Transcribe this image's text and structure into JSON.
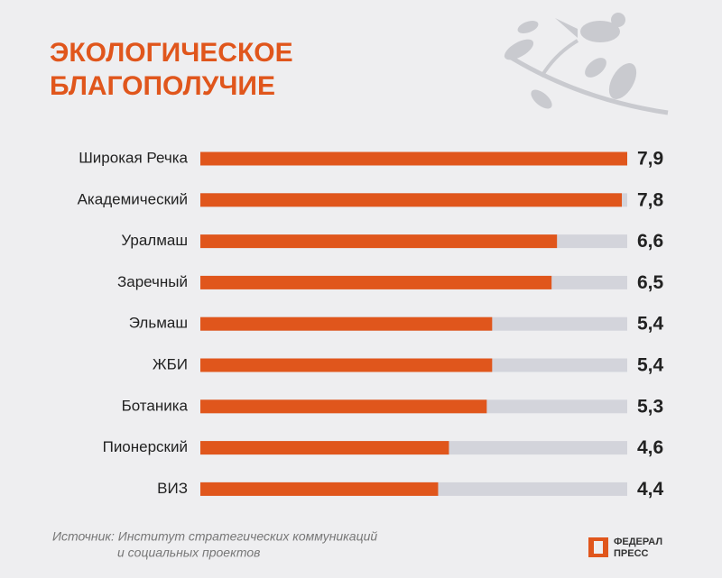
{
  "chart_data": {
    "type": "bar",
    "orientation": "horizontal",
    "title": [
      "ЭКОЛОГИЧЕСКОЕ",
      "БЛАГОПОЛУЧИЕ"
    ],
    "categories": [
      "Широкая Речка",
      "Академический",
      "Уралмаш",
      "Заречный",
      "Эльмаш",
      "ЖБИ",
      "Ботаника",
      "Пионерский",
      "ВИЗ"
    ],
    "values": [
      7.9,
      7.8,
      6.6,
      6.5,
      5.4,
      5.4,
      5.3,
      4.6,
      4.4
    ],
    "value_labels": [
      "7,9",
      "7,8",
      "6,6",
      "6,5",
      "5,4",
      "5,4",
      "5,3",
      "4,6",
      "4,4"
    ],
    "color": "#e0561c",
    "track_color": "#d3d4db",
    "xlim": [
      0,
      7.9
    ],
    "source": [
      "Источник: Институт стратегических коммуникаций",
      "и социальных проектов"
    ]
  },
  "logo": [
    "ФЕДЕРАЛ",
    "ПРЕСС"
  ]
}
